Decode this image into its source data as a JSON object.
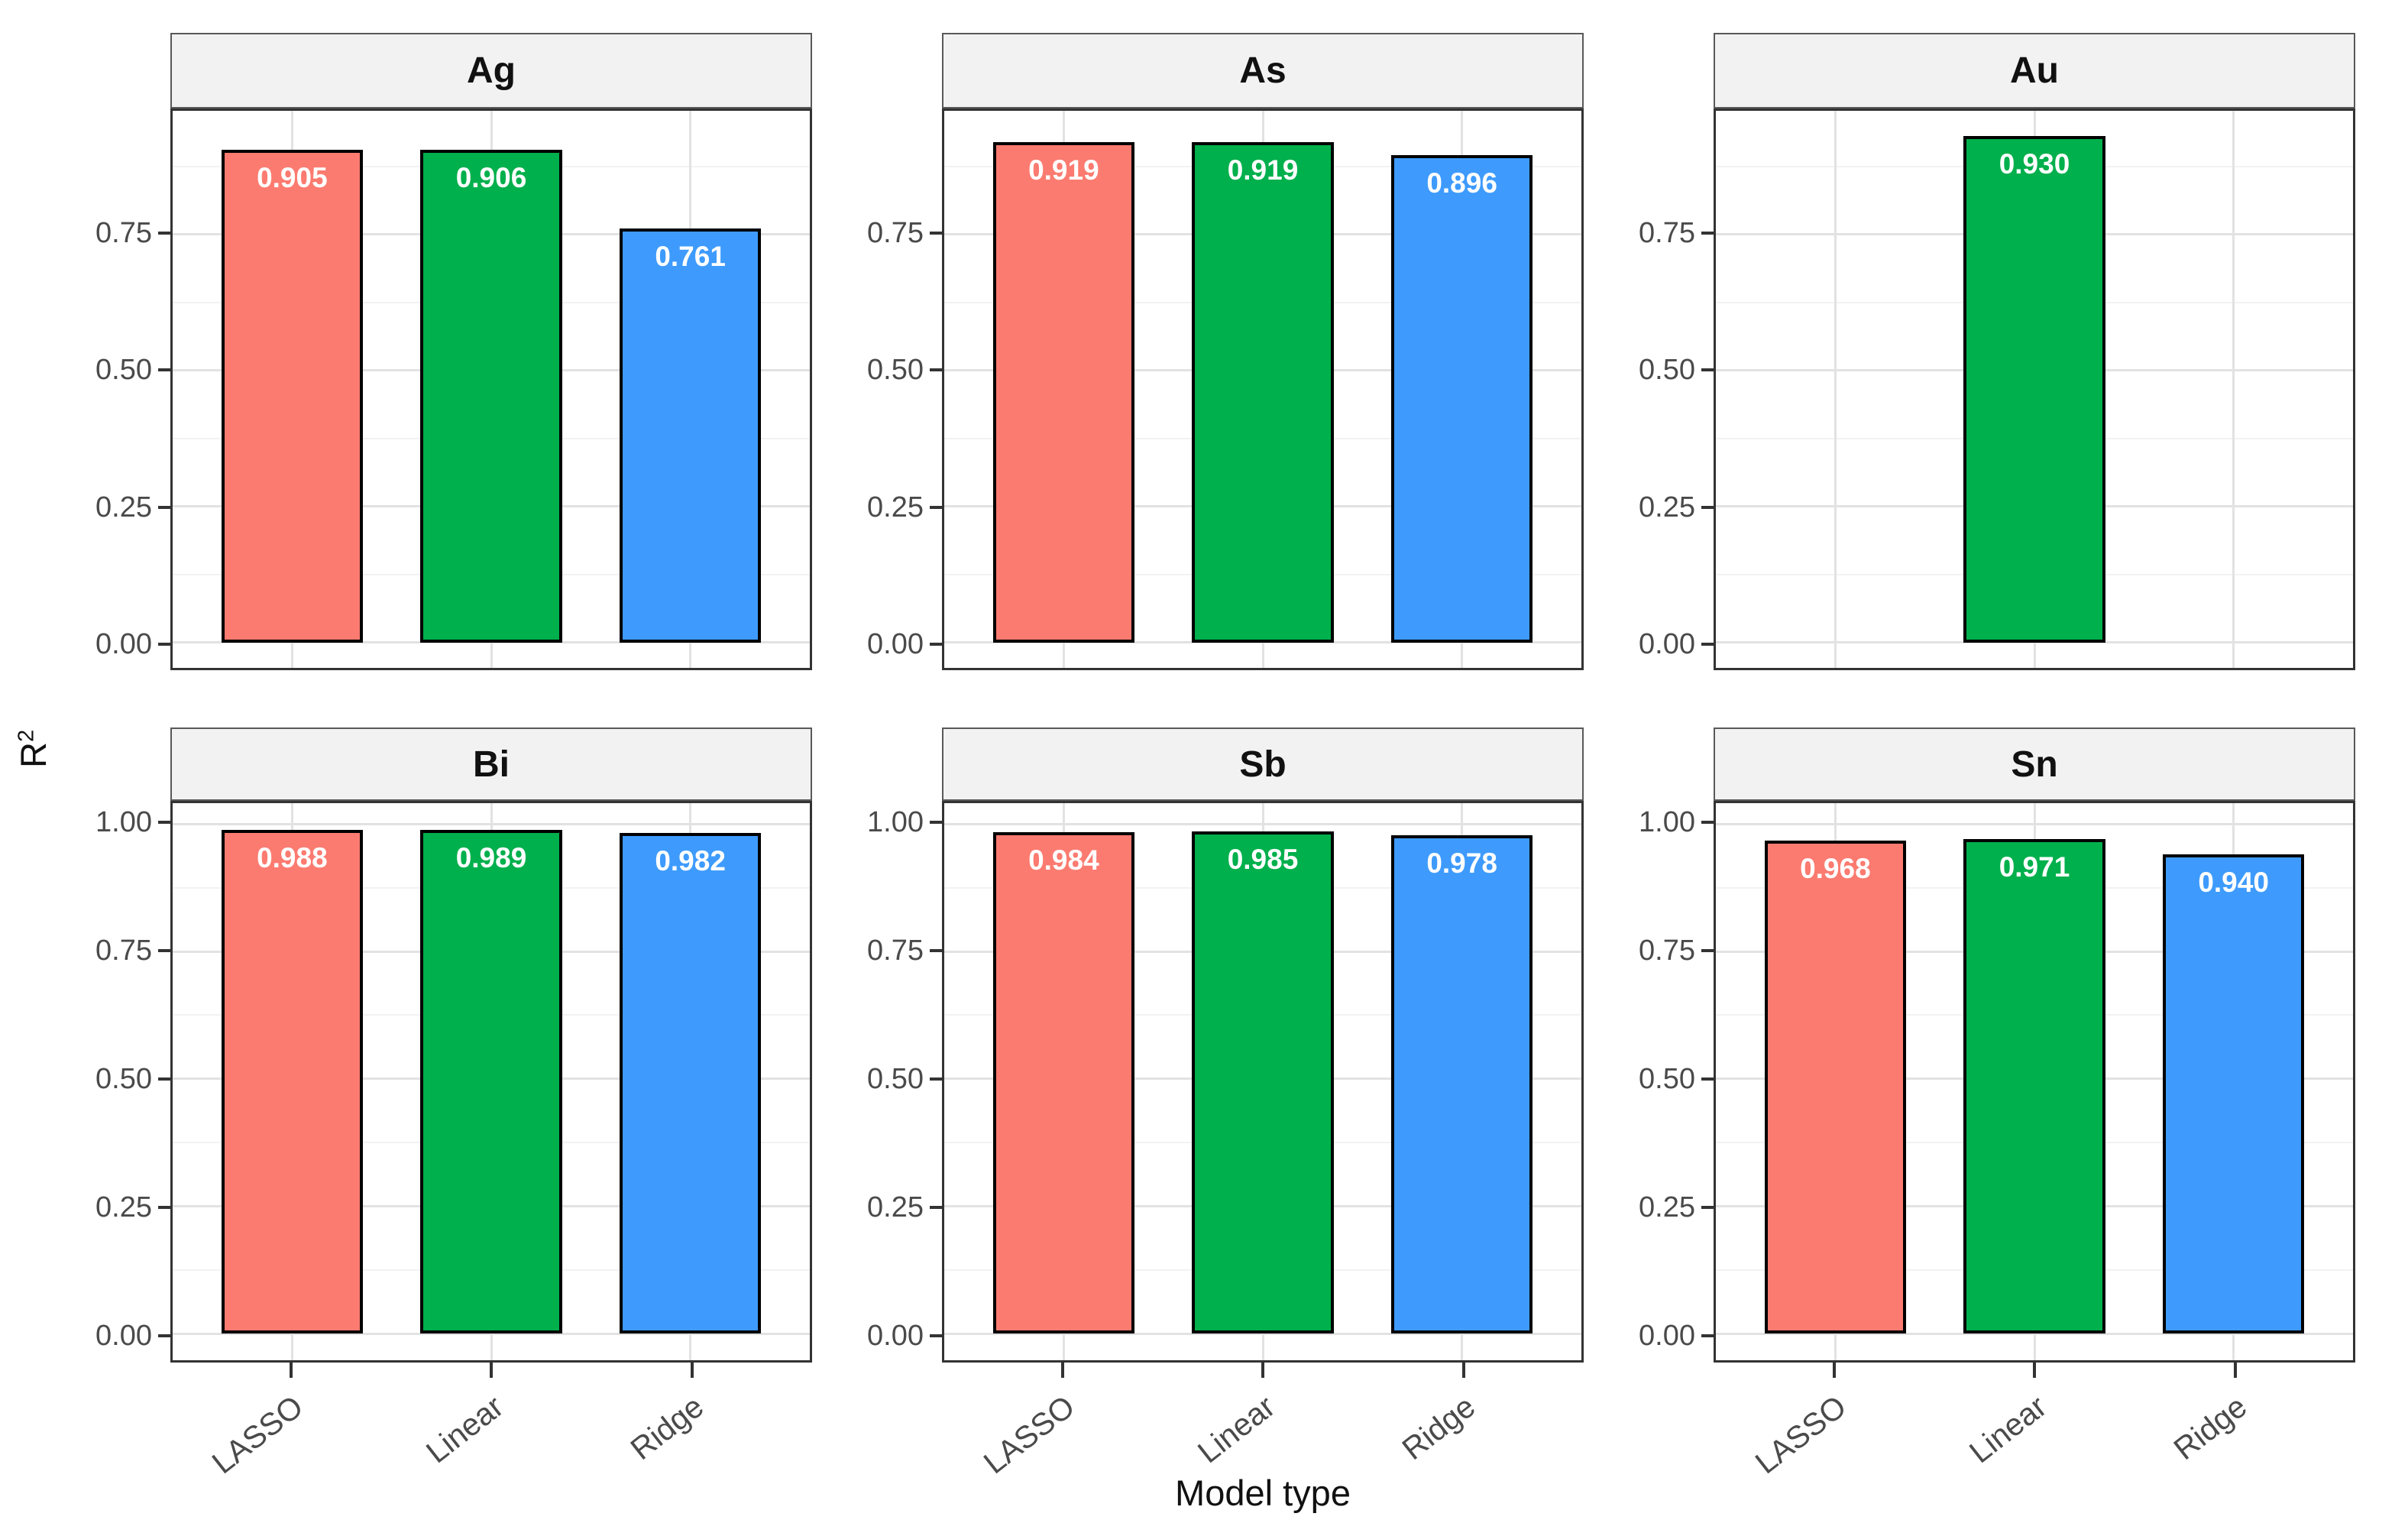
{
  "chart_data": {
    "type": "bar",
    "faceted": true,
    "title": "",
    "xlabel": "Model type",
    "ylabel": {
      "base": "R",
      "superscript": "2"
    },
    "categories": [
      "LASSO",
      "Linear",
      "Ridge"
    ],
    "series_colors": {
      "LASSO": "#FC7B70",
      "Linear": "#00B04C",
      "Ridge": "#3E9BFD"
    },
    "bar_outline_color": "#000000",
    "bar_label_color": "#FFFFFF",
    "panel_bg": "#FFFFFF",
    "strip_bg": "#F2F2F2",
    "grid": {
      "major_color": "#E2E2E2",
      "minor_color": "#F2F2F2",
      "visible": true
    },
    "legend": "none",
    "facets": [
      {
        "title": "Ag",
        "values": [
          0.905,
          0.906,
          0.761
        ],
        "value_labels": [
          "0.905",
          "0.906",
          "0.761"
        ]
      },
      {
        "title": "As",
        "values": [
          0.919,
          0.919,
          0.896
        ],
        "value_labels": [
          "0.919",
          "0.919",
          "0.896"
        ]
      },
      {
        "title": "Au",
        "values": [
          null,
          0.93,
          null
        ],
        "value_labels": [
          null,
          "0.930",
          null
        ]
      },
      {
        "title": "Bi",
        "values": [
          0.988,
          0.989,
          0.982
        ],
        "value_labels": [
          "0.988",
          "0.989",
          "0.982"
        ]
      },
      {
        "title": "Sb",
        "values": [
          0.984,
          0.985,
          0.978
        ],
        "value_labels": [
          "0.984",
          "0.985",
          "0.978"
        ]
      },
      {
        "title": "Sn",
        "values": [
          0.968,
          0.971,
          0.94
        ],
        "value_labels": [
          "0.968",
          "0.971",
          "0.940"
        ]
      }
    ],
    "rows": [
      {
        "y_ticks": [
          0,
          0.25,
          0.5,
          0.75
        ],
        "y_tick_labels": [
          "0.00",
          "0.25",
          "0.50",
          "0.75"
        ],
        "y_minor_ticks": [
          0.125,
          0.375,
          0.625,
          0.875
        ],
        "ylim": [
          -0.047,
          0.977
        ],
        "x_axis_labels_visible": false
      },
      {
        "y_ticks": [
          0,
          0.25,
          0.5,
          0.75,
          1.0
        ],
        "y_tick_labels": [
          "0.00",
          "0.25",
          "0.50",
          "0.75",
          "1.00"
        ],
        "y_minor_ticks": [
          0.125,
          0.375,
          0.625,
          0.875
        ],
        "ylim": [
          -0.052,
          1.041
        ],
        "x_axis_labels_visible": true
      }
    ]
  }
}
